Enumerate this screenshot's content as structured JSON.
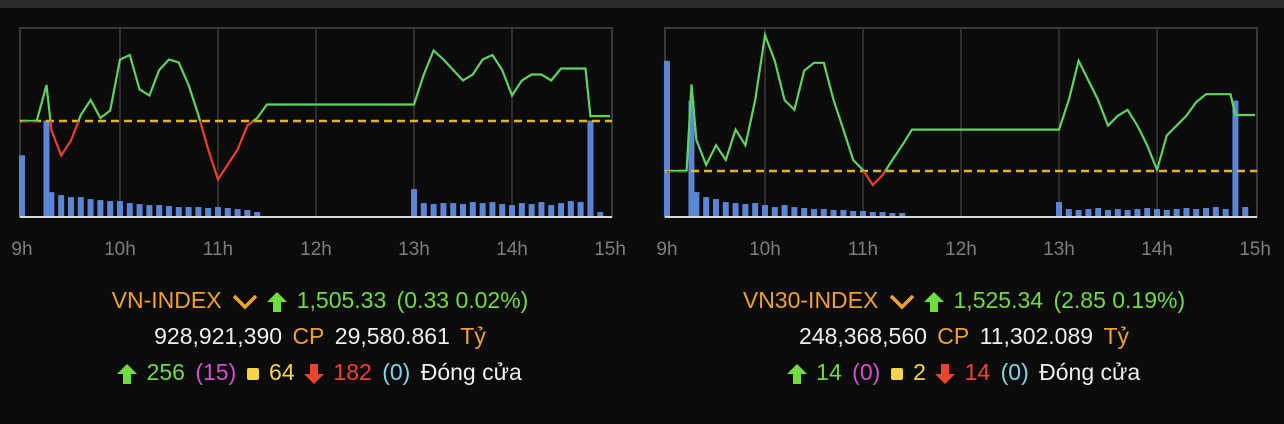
{
  "chart_data": [
    {
      "type": "line",
      "xlim": [
        8.98,
        15.02
      ],
      "ylim": [
        1498.6,
        1511.2
      ],
      "y2lim": [
        0,
        190
      ],
      "xticks": [
        {
          "value": 9,
          "label": "9h"
        },
        {
          "value": 10,
          "label": "10h"
        },
        {
          "value": 11,
          "label": "11h"
        },
        {
          "value": 12,
          "label": "12h"
        },
        {
          "value": 13,
          "label": "13h"
        },
        {
          "value": 14,
          "label": "14h"
        },
        {
          "value": 15,
          "label": "15h"
        }
      ],
      "grid": true,
      "reference": 1505.0,
      "up_color": "#5fd35f",
      "down_color": "#e8412c",
      "reference_color": "#e6b422",
      "x": [
        9.0,
        9.15,
        9.25,
        9.3,
        9.4,
        9.5,
        9.6,
        9.7,
        9.8,
        9.9,
        10.0,
        10.1,
        10.2,
        10.3,
        10.4,
        10.5,
        10.6,
        10.7,
        10.8,
        10.9,
        11.0,
        11.1,
        11.2,
        11.3,
        11.4,
        11.5,
        13.0,
        13.1,
        13.2,
        13.3,
        13.4,
        13.5,
        13.6,
        13.7,
        13.8,
        13.9,
        14.0,
        14.1,
        14.2,
        14.3,
        14.4,
        14.5,
        14.75,
        14.8,
        15.0
      ],
      "values": [
        1505.0,
        1505.0,
        1507.4,
        1504.4,
        1502.7,
        1503.7,
        1505.4,
        1506.4,
        1505.2,
        1505.7,
        1509.1,
        1509.4,
        1507.1,
        1506.7,
        1508.4,
        1509.1,
        1508.9,
        1507.4,
        1505.4,
        1503.1,
        1501.1,
        1502.1,
        1503.1,
        1504.7,
        1505.2,
        1506.1,
        1506.1,
        1508.1,
        1509.7,
        1509.1,
        1508.4,
        1507.7,
        1508.1,
        1509.1,
        1509.4,
        1508.4,
        1506.7,
        1507.7,
        1508.1,
        1508.1,
        1507.7,
        1508.5,
        1508.5,
        1505.33,
        1505.33
      ],
      "volume": {
        "color": "#5b86d6",
        "x": [
          9.0,
          9.25,
          9.3,
          9.4,
          9.5,
          9.6,
          9.7,
          9.8,
          9.9,
          10.0,
          10.1,
          10.2,
          10.3,
          10.4,
          10.5,
          10.6,
          10.7,
          10.8,
          10.9,
          11.0,
          11.1,
          11.2,
          11.3,
          11.4,
          13.0,
          13.1,
          13.2,
          13.3,
          13.4,
          13.5,
          13.6,
          13.7,
          13.8,
          13.9,
          14.0,
          14.1,
          14.2,
          14.3,
          14.4,
          14.5,
          14.6,
          14.7,
          14.8,
          14.9
        ],
        "values": [
          62,
          97,
          25,
          22,
          20,
          20,
          18,
          17,
          16,
          16,
          14,
          13,
          12,
          12,
          11,
          10,
          10,
          10,
          9,
          10,
          9,
          8,
          7,
          5,
          28,
          14,
          13,
          14,
          14,
          13,
          15,
          14,
          15,
          13,
          12,
          14,
          13,
          15,
          12,
          14,
          16,
          15,
          97,
          5
        ]
      }
    },
    {
      "type": "line",
      "xlim": [
        8.98,
        15.02
      ],
      "ylim": [
        1520.15,
        1529.77
      ],
      "y2lim": [
        0,
        190
      ],
      "xticks": [
        {
          "value": 9,
          "label": "9h"
        },
        {
          "value": 10,
          "label": "10h"
        },
        {
          "value": 11,
          "label": "11h"
        },
        {
          "value": 12,
          "label": "12h"
        },
        {
          "value": 13,
          "label": "13h"
        },
        {
          "value": 14,
          "label": "14h"
        },
        {
          "value": 15,
          "label": "15h"
        }
      ],
      "grid": true,
      "reference": 1522.49,
      "up_color": "#5fd35f",
      "down_color": "#e8412c",
      "reference_color": "#e6b422",
      "x": [
        9.0,
        9.2,
        9.25,
        9.3,
        9.4,
        9.5,
        9.6,
        9.7,
        9.8,
        9.9,
        10.0,
        10.1,
        10.2,
        10.3,
        10.4,
        10.5,
        10.6,
        10.7,
        10.8,
        10.9,
        11.0,
        11.1,
        11.2,
        11.3,
        11.4,
        11.5,
        13.0,
        13.1,
        13.2,
        13.3,
        13.4,
        13.5,
        13.6,
        13.7,
        13.8,
        13.9,
        14.0,
        14.1,
        14.2,
        14.3,
        14.4,
        14.5,
        14.75,
        14.8,
        15.0
      ],
      "values": [
        1522.49,
        1522.49,
        1526.9,
        1524.07,
        1522.8,
        1523.8,
        1523.05,
        1524.6,
        1523.8,
        1526.1,
        1529.4,
        1528.1,
        1526.1,
        1525.6,
        1527.6,
        1528.0,
        1528.0,
        1526.1,
        1524.6,
        1523.05,
        1522.54,
        1521.78,
        1522.29,
        1523.05,
        1523.8,
        1524.6,
        1524.6,
        1526.1,
        1528.1,
        1527.1,
        1526.1,
        1524.8,
        1525.3,
        1525.6,
        1524.8,
        1523.8,
        1522.54,
        1524.3,
        1524.8,
        1525.3,
        1526.0,
        1526.4,
        1526.4,
        1525.34,
        1525.34
      ],
      "volume": {
        "color": "#5b86d6",
        "x": [
          9.0,
          9.25,
          9.3,
          9.4,
          9.5,
          9.6,
          9.7,
          9.8,
          9.9,
          10.0,
          10.1,
          10.2,
          10.3,
          10.4,
          10.5,
          10.6,
          10.7,
          10.8,
          10.9,
          11.0,
          11.1,
          11.2,
          11.3,
          11.4,
          13.0,
          13.1,
          13.2,
          13.3,
          13.4,
          13.5,
          13.6,
          13.7,
          13.8,
          13.9,
          14.0,
          14.1,
          14.2,
          14.3,
          14.4,
          14.5,
          14.6,
          14.7,
          14.8,
          14.9
        ],
        "values": [
          157,
          117,
          25,
          20,
          18,
          15,
          14,
          13,
          14,
          12,
          10,
          12,
          10,
          9,
          8,
          8,
          7,
          7,
          6,
          6,
          5,
          5,
          4,
          4,
          15,
          8,
          7,
          8,
          9,
          7,
          8,
          7,
          8,
          9,
          8,
          7,
          8,
          9,
          8,
          9,
          10,
          8,
          117,
          10
        ]
      }
    }
  ],
  "panels": [
    {
      "name": "VN-INDEX",
      "price": "1,505.33",
      "change": "(0.33 0.02%)",
      "volume": "928,921,390",
      "cp": "CP",
      "value": "29,580.861",
      "unit": "Tỷ",
      "advances": "256",
      "ceiling": "(15)",
      "unchanged": "64",
      "declines": "182",
      "floor": "(0)",
      "status": "Đóng cửa"
    },
    {
      "name": "VN30-INDEX",
      "price": "1,525.34",
      "change": "(2.85 0.19%)",
      "volume": "248,368,560",
      "cp": "CP",
      "value": "11,302.089",
      "unit": "Tỷ",
      "advances": "14",
      "ceiling": "(0)",
      "unchanged": "2",
      "declines": "14",
      "floor": "(0)",
      "status": "Đóng cửa"
    }
  ]
}
